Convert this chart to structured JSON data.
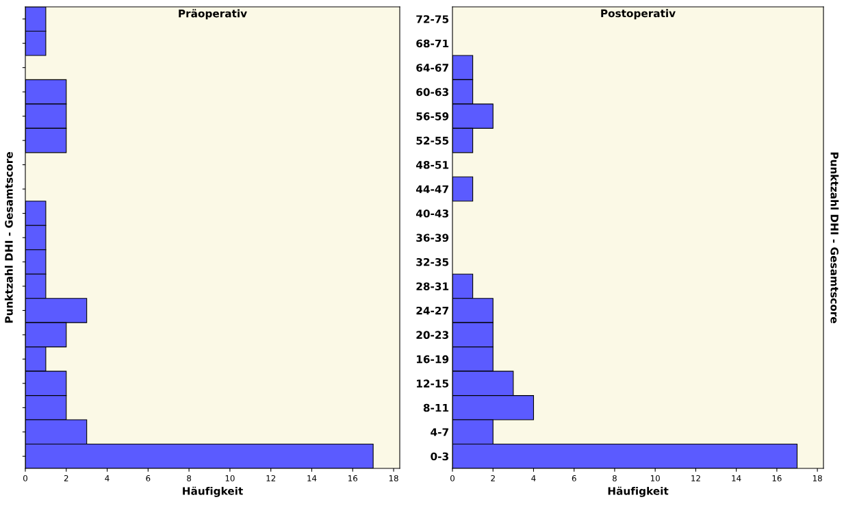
{
  "chart_data": [
    {
      "type": "bar",
      "orientation": "horizontal",
      "title": "Präoperativ",
      "xlabel": "Häufigkeit",
      "ylabel": "Punktzahl DHI - Gesamtscore",
      "categories": [
        null,
        null,
        null,
        null,
        null,
        null,
        null,
        null,
        null,
        null,
        null,
        null,
        null,
        null,
        null,
        null,
        null,
        null,
        null
      ],
      "values": [
        1,
        1,
        0,
        2,
        2,
        2,
        0,
        0,
        1,
        1,
        1,
        1,
        3,
        2,
        1,
        2,
        2,
        3,
        17
      ],
      "color": "#5b5bff",
      "xlim": [
        0,
        18.3
      ],
      "xticks": [
        0,
        2,
        4,
        6,
        8,
        10,
        12,
        14,
        16,
        18
      ],
      "tick_labels": "x",
      "grid": false,
      "legend": false
    },
    {
      "type": "bar",
      "orientation": "horizontal",
      "title": "Postoperativ",
      "xlabel": "Häufigkeit",
      "ylabel": "Punktzahl DHI - Gesamtscore",
      "categories": [
        "72-75",
        "68-71",
        "64-67",
        "60-63",
        "56-59",
        "52-55",
        "48-51",
        "44-47",
        "40-43",
        "36-39",
        "32-35",
        "28-31",
        "24-27",
        "20-23",
        "16-19",
        "12-15",
        "8-11",
        "4-7",
        "0-3"
      ],
      "values": [
        0,
        0,
        1,
        1,
        2,
        1,
        0,
        1,
        0,
        0,
        0,
        1,
        2,
        2,
        2,
        3,
        4,
        2,
        17
      ],
      "color": "#5b5bff",
      "xlim": [
        0,
        18.3
      ],
      "xticks": [
        0,
        2,
        4,
        6,
        8,
        10,
        12,
        14,
        16,
        18
      ],
      "grid": false,
      "legend": false
    }
  ]
}
